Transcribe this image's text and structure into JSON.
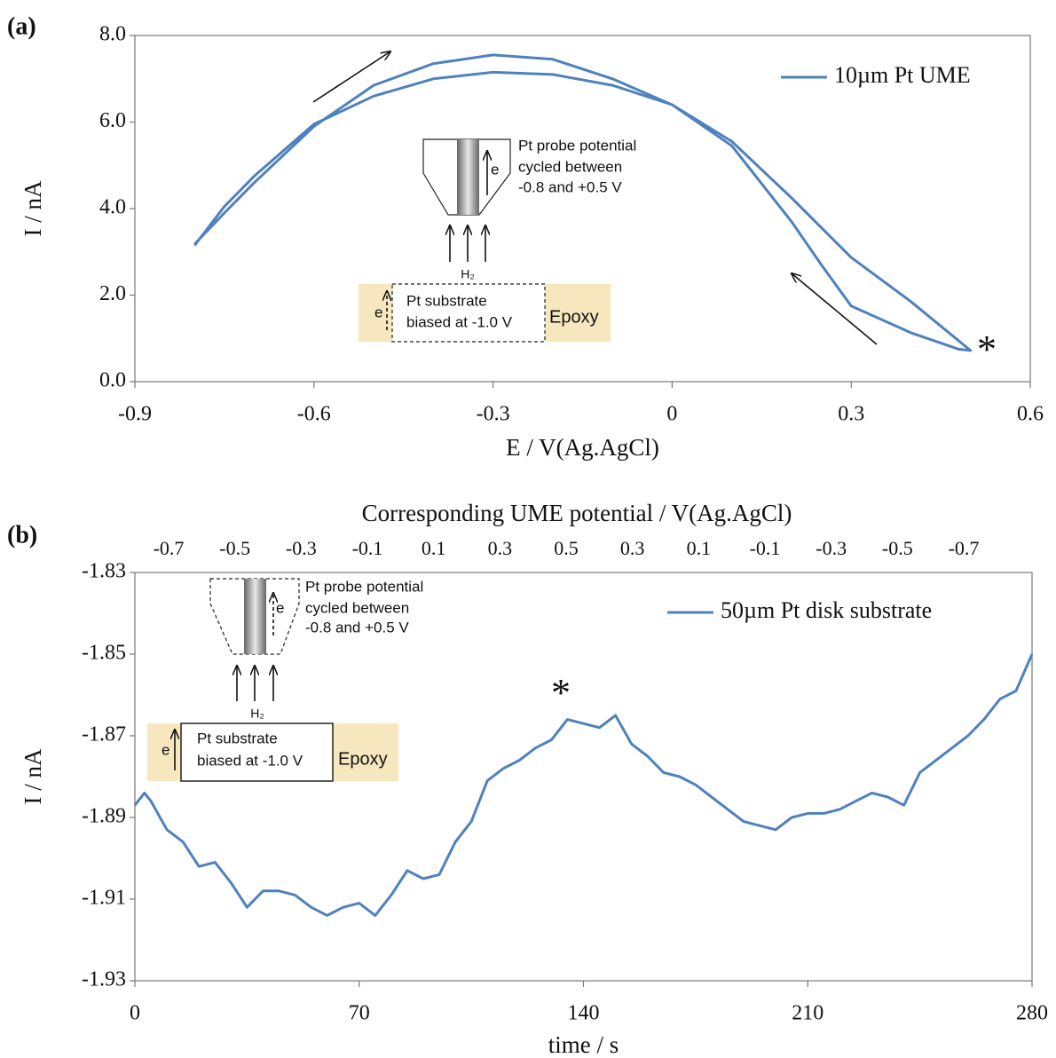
{
  "chart_data": [
    {
      "type": "line",
      "panel": "(a)",
      "x_label": "E / V(Ag.AgCl)",
      "y_label": "I / nA",
      "x": [
        -0.8,
        -0.75,
        -0.7,
        -0.6,
        -0.5,
        -0.4,
        -0.3,
        -0.2,
        -0.1,
        0,
        0.1,
        0.2,
        0.3,
        0.4,
        0.5,
        0.48,
        0.4,
        0.3,
        0.25,
        0.2,
        0.1,
        0,
        -0.1,
        -0.2,
        -0.3,
        -0.4,
        -0.5,
        -0.6,
        -0.7,
        -0.75,
        -0.8
      ],
      "series": [
        {
          "name": "10µm Pt UME",
          "color": "#4f81bd",
          "values": [
            3.18,
            3.9,
            4.6,
            5.9,
            6.85,
            7.35,
            7.55,
            7.45,
            7.0,
            6.4,
            5.55,
            4.25,
            2.87,
            1.85,
            0.72,
            0.75,
            1.13,
            1.75,
            2.7,
            3.7,
            5.45,
            6.4,
            6.85,
            7.1,
            7.15,
            7.0,
            6.6,
            5.95,
            4.75,
            4.05,
            3.15
          ]
        }
      ],
      "xlim": [
        -0.9,
        0.6
      ],
      "xticks": [
        -0.9,
        -0.6,
        -0.3,
        0,
        0.3,
        0.6
      ],
      "ylim": [
        0,
        8
      ],
      "yticks": [
        {
          "value": 0,
          "label": "0.0"
        },
        {
          "value": 2,
          "label": "2.0"
        },
        {
          "value": 4,
          "label": "4.0"
        },
        {
          "value": 6,
          "label": "6.0"
        },
        {
          "value": 8,
          "label": "8.0"
        }
      ],
      "legend": "upper right",
      "annotations": {
        "probe": [
          "Pt probe potential",
          "cycled between",
          "-0.8 and +0.5 V"
        ],
        "probe_e": "e",
        "gas": "H₂",
        "substrate": [
          "Pt substrate",
          "biased at -1.0 V"
        ],
        "substrate_e": "e",
        "epoxy": "Epoxy",
        "marker": "*"
      }
    },
    {
      "type": "line",
      "panel": "(b)",
      "x_label": "time / s",
      "y_label": "I / nA",
      "top_axis": {
        "label": "Corresponding UME potential / V(Ag.AgCl)",
        "labels": [
          -0.7,
          -0.5,
          -0.3,
          -0.1,
          0.1,
          0.3,
          0.5,
          0.3,
          0.1,
          -0.1,
          -0.3,
          -0.5,
          -0.7
        ]
      },
      "x": [
        0,
        3,
        5,
        10,
        15,
        20,
        25,
        30,
        35,
        40,
        45,
        50,
        55,
        60,
        65,
        70,
        75,
        80,
        85,
        90,
        95,
        100,
        105,
        110,
        115,
        120,
        125,
        130,
        135,
        140,
        145,
        150,
        155,
        160,
        165,
        170,
        175,
        180,
        185,
        190,
        195,
        200,
        205,
        210,
        215,
        220,
        225,
        230,
        235,
        240,
        245,
        250,
        255,
        260,
        265,
        270,
        275,
        280
      ],
      "series": [
        {
          "name": "50µm Pt disk substrate",
          "color": "#4f81bd",
          "values": [
            -1.887,
            -1.884,
            -1.886,
            -1.893,
            -1.896,
            -1.902,
            -1.901,
            -1.906,
            -1.912,
            -1.908,
            -1.908,
            -1.909,
            -1.912,
            -1.914,
            -1.912,
            -1.911,
            -1.914,
            -1.909,
            -1.903,
            -1.905,
            -1.904,
            -1.896,
            -1.891,
            -1.881,
            -1.878,
            -1.876,
            -1.873,
            -1.871,
            -1.866,
            -1.867,
            -1.868,
            -1.865,
            -1.872,
            -1.875,
            -1.879,
            -1.88,
            -1.882,
            -1.885,
            -1.888,
            -1.891,
            -1.892,
            -1.893,
            -1.89,
            -1.889,
            -1.889,
            -1.888,
            -1.886,
            -1.884,
            -1.885,
            -1.887,
            -1.879,
            -1.876,
            -1.873,
            -1.87,
            -1.866,
            -1.861,
            -1.859,
            -1.85
          ]
        }
      ],
      "xlim": [
        0,
        280
      ],
      "xticks": [
        0,
        70,
        140,
        210,
        280
      ],
      "ylim": [
        -1.93,
        -1.83
      ],
      "yticks": [
        -1.93,
        -1.91,
        -1.89,
        -1.87,
        -1.85,
        -1.83
      ],
      "legend": "upper right",
      "annotations": {
        "probe": [
          "Pt probe potential",
          "cycled between",
          "-0.8 and +0.5 V"
        ],
        "probe_e": "e",
        "gas": "H₂",
        "substrate": [
          "Pt substrate",
          "biased at -1.0 V"
        ],
        "substrate_e": "e",
        "epoxy": "Epoxy",
        "marker": "*"
      }
    }
  ]
}
